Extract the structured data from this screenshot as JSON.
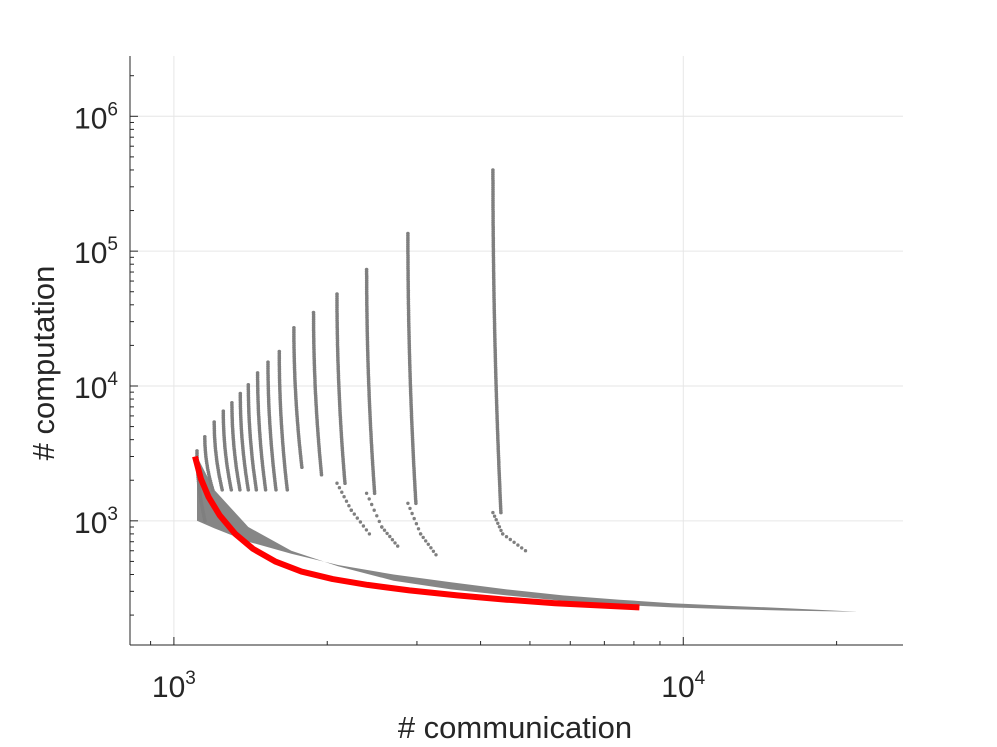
{
  "chart_data": {
    "type": "scatter",
    "title": "",
    "xlabel": "# communication",
    "ylabel": "# computation",
    "xscale": "log",
    "yscale": "log",
    "xlim": [
      820,
      27000
    ],
    "ylim": [
      120,
      2800000
    ],
    "grid": true,
    "x_ticks": [
      {
        "value": 1000,
        "base": "10",
        "exp": "3"
      },
      {
        "value": 10000,
        "base": "10",
        "exp": "4"
      }
    ],
    "y_ticks": [
      {
        "value": 1000,
        "base": "10",
        "exp": "3"
      },
      {
        "value": 10000,
        "base": "10",
        "exp": "4"
      },
      {
        "value": 100000,
        "base": "10",
        "exp": "5"
      },
      {
        "value": 1000000,
        "base": "10",
        "exp": "6"
      }
    ],
    "series": [
      {
        "kind": "scatter",
        "color": "#7f7f7f",
        "columns": [
          {
            "x": 1110,
            "y_top": 3300,
            "y_bottom": 1000
          },
          {
            "x": 1150,
            "y_top": 4200,
            "y_bottom": 1700
          },
          {
            "x": 1200,
            "y_top": 5400,
            "y_bottom": 1700
          },
          {
            "x": 1250,
            "y_top": 6500,
            "y_bottom": 1700
          },
          {
            "x": 1300,
            "y_top": 7500,
            "y_bottom": 1700
          },
          {
            "x": 1350,
            "y_top": 8800,
            "y_bottom": 1700
          },
          {
            "x": 1400,
            "y_top": 10200,
            "y_bottom": 1700
          },
          {
            "x": 1460,
            "y_top": 12500,
            "y_bottom": 1700
          },
          {
            "x": 1530,
            "y_top": 15000,
            "y_bottom": 1700
          },
          {
            "x": 1610,
            "y_top": 18000,
            "y_bottom": 1700
          },
          {
            "x": 1720,
            "y_top": 27000,
            "y_bottom": 2500
          },
          {
            "x": 1880,
            "y_top": 35000,
            "y_bottom": 2200
          },
          {
            "x": 2090,
            "y_top": 48000,
            "y_bottom": 1900
          },
          {
            "x": 2390,
            "y_top": 73000,
            "y_bottom": 1600
          },
          {
            "x": 2880,
            "y_top": 135000,
            "y_bottom": 1350
          },
          {
            "x": 4230,
            "y_top": 400000,
            "y_bottom": 1150
          }
        ],
        "tails": [
          [
            [
              2090,
              1900
            ],
            [
              2230,
              1200
            ],
            [
              2420,
              800
            ]
          ],
          [
            [
              2390,
              1600
            ],
            [
              2560,
              900
            ],
            [
              2750,
              650
            ]
          ],
          [
            [
              2880,
              1350
            ],
            [
              3050,
              800
            ],
            [
              3270,
              560
            ]
          ],
          [
            [
              4230,
              1150
            ],
            [
              4420,
              800
            ],
            [
              4900,
              600
            ]
          ]
        ],
        "band": [
          [
            1110,
            1000
          ],
          [
            1200,
            880
          ],
          [
            1400,
            700
          ],
          [
            1700,
            570
          ],
          [
            2100,
            470
          ],
          [
            2700,
            400
          ],
          [
            3500,
            350
          ],
          [
            4500,
            310
          ],
          [
            5800,
            280
          ],
          [
            7500,
            260
          ],
          [
            9500,
            245
          ],
          [
            12000,
            235
          ],
          [
            16000,
            225
          ],
          [
            22000,
            212
          ]
        ],
        "band_lower": [
          [
            1110,
            3000
          ],
          [
            1200,
            1700
          ],
          [
            1400,
            900
          ],
          [
            1700,
            600
          ],
          [
            2100,
            460
          ],
          [
            2700,
            360
          ],
          [
            3500,
            310
          ],
          [
            4500,
            280
          ],
          [
            5800,
            255
          ],
          [
            7500,
            238
          ],
          [
            9500,
            228
          ],
          [
            12000,
            222
          ],
          [
            16000,
            216
          ],
          [
            22000,
            212
          ]
        ]
      },
      {
        "kind": "line",
        "color": "#ff0000",
        "points": [
          [
            1100,
            3000
          ],
          [
            1130,
            2050
          ],
          [
            1170,
            1500
          ],
          [
            1230,
            1100
          ],
          [
            1320,
            800
          ],
          [
            1430,
            620
          ],
          [
            1580,
            500
          ],
          [
            1780,
            420
          ],
          [
            2050,
            370
          ],
          [
            2400,
            335
          ],
          [
            2900,
            305
          ],
          [
            3600,
            280
          ],
          [
            4500,
            260
          ],
          [
            5600,
            245
          ],
          [
            6800,
            236
          ],
          [
            8200,
            228
          ]
        ]
      }
    ]
  }
}
